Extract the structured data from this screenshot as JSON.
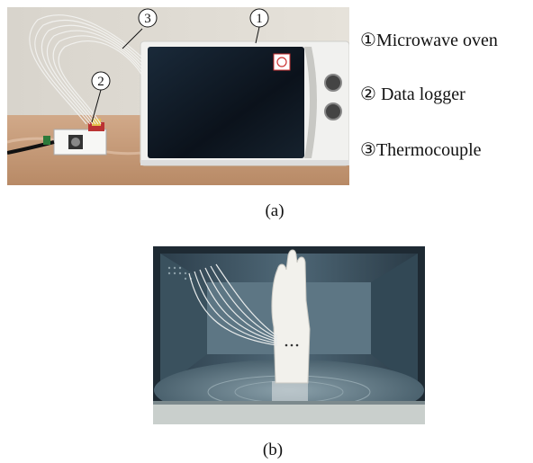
{
  "figure": {
    "panel_a": {
      "caption": "(a)",
      "callouts": [
        "1",
        "2",
        "3"
      ],
      "legend": [
        {
          "marker": "①",
          "text": "Microwave oven"
        },
        {
          "marker": "②",
          "text": " Data logger"
        },
        {
          "marker": "③",
          "text": "Thermocouple"
        }
      ]
    },
    "panel_b": {
      "caption": "(b)"
    }
  },
  "colors": {
    "wall": "#dcd6cc",
    "table": "#c79a78",
    "oven_body": "#f1f1ef",
    "oven_door": "#0d1622",
    "cavity": "#3e5665",
    "hand_model": "#f2f1ec"
  }
}
